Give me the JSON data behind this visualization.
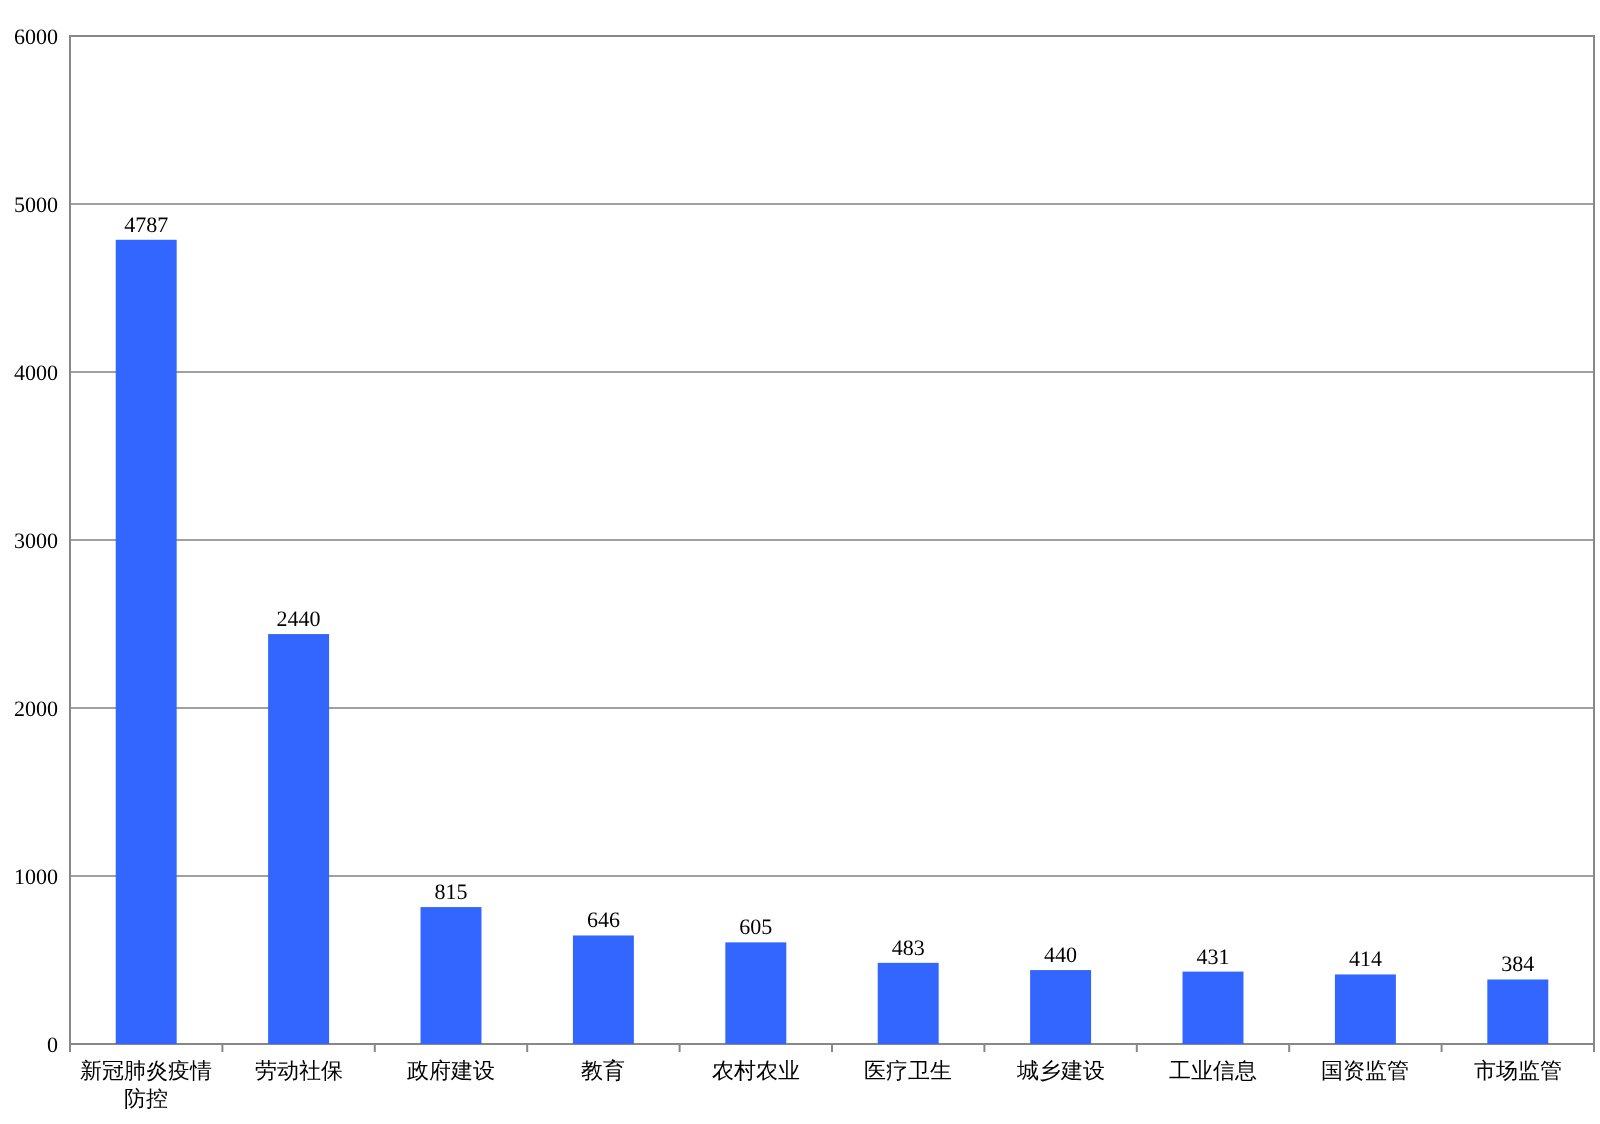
{
  "chart_data": {
    "type": "bar",
    "categories": [
      "新冠肺炎疫情防控",
      "劳动社保",
      "政府建设",
      "教育",
      "农村农业",
      "医疗卫生",
      "城乡建设",
      "工业信息",
      "国资监管",
      "市场监管"
    ],
    "values": [
      4787,
      2440,
      815,
      646,
      605,
      483,
      440,
      431,
      414,
      384
    ],
    "color": "#3366ff",
    "ylim": [
      0,
      6000
    ],
    "yticks": [
      0,
      1000,
      2000,
      3000,
      4000,
      5000,
      6000
    ],
    "grid": "y",
    "data_labels": true
  }
}
